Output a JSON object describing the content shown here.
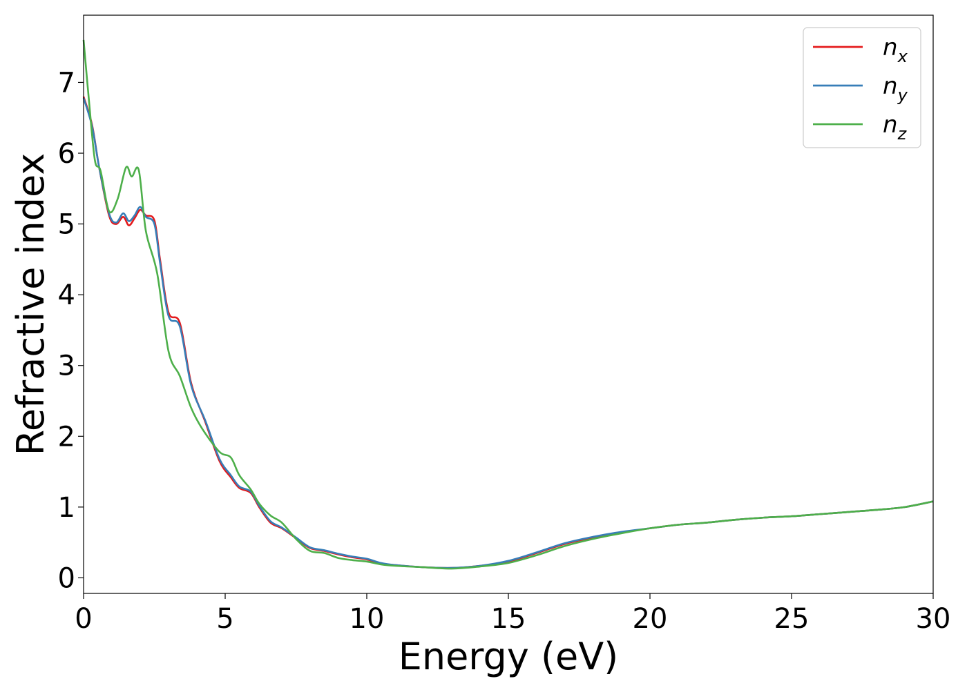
{
  "chart_data": {
    "type": "line",
    "title": "",
    "xlabel": "Energy (eV)",
    "ylabel": "Refractive index",
    "xlim": [
      0,
      30
    ],
    "ylim": [
      -0.22,
      7.95
    ],
    "xticks": [
      0,
      5,
      10,
      15,
      20,
      25,
      30
    ],
    "yticks": [
      0,
      1,
      2,
      3,
      4,
      5,
      6,
      7
    ],
    "grid": false,
    "legend_position": "top-right",
    "series": [
      {
        "name": "n",
        "subscript": "x",
        "color": "#e41a1c",
        "points": [
          [
            0,
            6.8
          ],
          [
            0.3,
            6.4
          ],
          [
            0.55,
            5.8
          ],
          [
            0.9,
            5.12
          ],
          [
            1.15,
            5.0
          ],
          [
            1.4,
            5.1
          ],
          [
            1.6,
            4.98
          ],
          [
            1.8,
            5.08
          ],
          [
            2.0,
            5.2
          ],
          [
            2.2,
            5.12
          ],
          [
            2.5,
            5.05
          ],
          [
            2.7,
            4.5
          ],
          [
            3.0,
            3.75
          ],
          [
            3.4,
            3.6
          ],
          [
            3.8,
            2.75
          ],
          [
            4.3,
            2.2
          ],
          [
            4.8,
            1.65
          ],
          [
            5.2,
            1.42
          ],
          [
            5.5,
            1.27
          ],
          [
            5.9,
            1.2
          ],
          [
            6.2,
            1.0
          ],
          [
            6.6,
            0.78
          ],
          [
            7.0,
            0.7
          ],
          [
            7.5,
            0.56
          ],
          [
            8.0,
            0.42
          ],
          [
            8.5,
            0.38
          ],
          [
            9.0,
            0.33
          ],
          [
            9.5,
            0.29
          ],
          [
            10.0,
            0.26
          ],
          [
            10.5,
            0.2
          ],
          [
            11.0,
            0.18
          ],
          [
            12.0,
            0.15
          ],
          [
            13.0,
            0.14
          ],
          [
            14.0,
            0.17
          ],
          [
            15.0,
            0.23
          ],
          [
            16.0,
            0.35
          ],
          [
            17.0,
            0.48
          ],
          [
            18.0,
            0.57
          ],
          [
            19.0,
            0.64
          ],
          [
            20.0,
            0.7
          ],
          [
            21.0,
            0.75
          ],
          [
            22.0,
            0.78
          ],
          [
            23.0,
            0.82
          ],
          [
            24.0,
            0.85
          ],
          [
            25.0,
            0.87
          ],
          [
            26.0,
            0.9
          ],
          [
            27.0,
            0.93
          ],
          [
            28.0,
            0.96
          ],
          [
            29.0,
            1.0
          ],
          [
            30.0,
            1.08
          ]
        ]
      },
      {
        "name": "n",
        "subscript": "y",
        "color": "#377eb8",
        "points": [
          [
            0,
            6.78
          ],
          [
            0.3,
            6.38
          ],
          [
            0.55,
            5.8
          ],
          [
            0.9,
            5.15
          ],
          [
            1.15,
            5.02
          ],
          [
            1.4,
            5.15
          ],
          [
            1.6,
            5.04
          ],
          [
            1.8,
            5.12
          ],
          [
            2.0,
            5.24
          ],
          [
            2.2,
            5.1
          ],
          [
            2.5,
            5.0
          ],
          [
            2.7,
            4.45
          ],
          [
            3.0,
            3.7
          ],
          [
            3.4,
            3.55
          ],
          [
            3.8,
            2.72
          ],
          [
            4.3,
            2.22
          ],
          [
            4.8,
            1.68
          ],
          [
            5.2,
            1.45
          ],
          [
            5.5,
            1.29
          ],
          [
            5.9,
            1.22
          ],
          [
            6.2,
            1.02
          ],
          [
            6.6,
            0.8
          ],
          [
            7.0,
            0.71
          ],
          [
            7.5,
            0.57
          ],
          [
            8.0,
            0.43
          ],
          [
            8.5,
            0.39
          ],
          [
            9.0,
            0.34
          ],
          [
            9.5,
            0.3
          ],
          [
            10.0,
            0.27
          ],
          [
            10.5,
            0.21
          ],
          [
            11.0,
            0.18
          ],
          [
            12.0,
            0.15
          ],
          [
            13.0,
            0.14
          ],
          [
            14.0,
            0.17
          ],
          [
            15.0,
            0.24
          ],
          [
            16.0,
            0.36
          ],
          [
            17.0,
            0.49
          ],
          [
            18.0,
            0.58
          ],
          [
            19.0,
            0.65
          ],
          [
            20.0,
            0.7
          ],
          [
            21.0,
            0.75
          ],
          [
            22.0,
            0.78
          ],
          [
            23.0,
            0.82
          ],
          [
            24.0,
            0.85
          ],
          [
            25.0,
            0.87
          ],
          [
            26.0,
            0.9
          ],
          [
            27.0,
            0.93
          ],
          [
            28.0,
            0.96
          ],
          [
            29.0,
            1.0
          ],
          [
            30.0,
            1.08
          ]
        ]
      },
      {
        "name": "n",
        "subscript": "z",
        "color": "#4daf4a",
        "points": [
          [
            0,
            7.6
          ],
          [
            0.2,
            6.7
          ],
          [
            0.4,
            5.9
          ],
          [
            0.6,
            5.75
          ],
          [
            0.9,
            5.18
          ],
          [
            1.2,
            5.35
          ],
          [
            1.5,
            5.8
          ],
          [
            1.7,
            5.67
          ],
          [
            1.95,
            5.76
          ],
          [
            2.2,
            4.9
          ],
          [
            2.6,
            4.3
          ],
          [
            3.0,
            3.2
          ],
          [
            3.4,
            2.85
          ],
          [
            3.8,
            2.4
          ],
          [
            4.2,
            2.1
          ],
          [
            4.8,
            1.78
          ],
          [
            5.2,
            1.7
          ],
          [
            5.5,
            1.45
          ],
          [
            5.9,
            1.25
          ],
          [
            6.2,
            1.05
          ],
          [
            6.6,
            0.88
          ],
          [
            7.0,
            0.78
          ],
          [
            7.5,
            0.55
          ],
          [
            8.0,
            0.38
          ],
          [
            8.5,
            0.35
          ],
          [
            9.0,
            0.28
          ],
          [
            9.5,
            0.25
          ],
          [
            10.0,
            0.23
          ],
          [
            10.5,
            0.19
          ],
          [
            11.0,
            0.17
          ],
          [
            12.0,
            0.15
          ],
          [
            13.0,
            0.13
          ],
          [
            14.0,
            0.16
          ],
          [
            15.0,
            0.21
          ],
          [
            16.0,
            0.32
          ],
          [
            17.0,
            0.45
          ],
          [
            18.0,
            0.55
          ],
          [
            19.0,
            0.63
          ],
          [
            20.0,
            0.7
          ],
          [
            21.0,
            0.75
          ],
          [
            22.0,
            0.78
          ],
          [
            23.0,
            0.82
          ],
          [
            24.0,
            0.85
          ],
          [
            25.0,
            0.87
          ],
          [
            26.0,
            0.9
          ],
          [
            27.0,
            0.93
          ],
          [
            28.0,
            0.96
          ],
          [
            29.0,
            1.0
          ],
          [
            30.0,
            1.08
          ]
        ]
      }
    ]
  }
}
